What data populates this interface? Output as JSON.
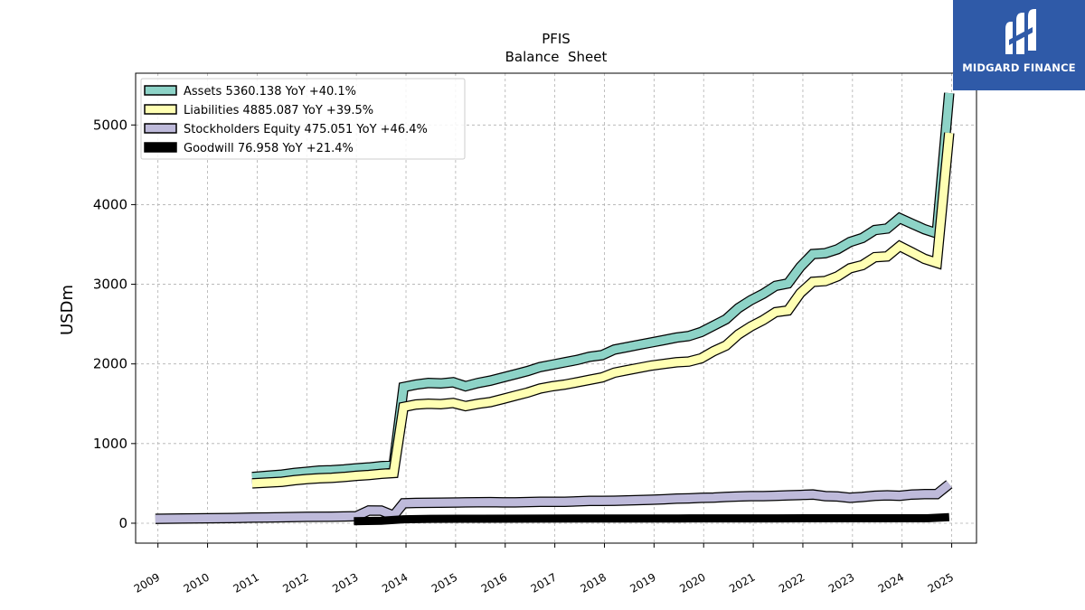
{
  "chart_data": {
    "type": "line",
    "title": "PFIS",
    "subtitle": "Balance  Sheet",
    "ylabel": "USDm",
    "xlabel": "",
    "xlim": [
      2008.55,
      2025.5
    ],
    "ylim": [
      -250,
      5650
    ],
    "x_ticks": [
      "2009",
      "2010",
      "2011",
      "2012",
      "2013",
      "2014",
      "2015",
      "2016",
      "2017",
      "2018",
      "2019",
      "2020",
      "2021",
      "2022",
      "2023",
      "2024",
      "2025"
    ],
    "y_ticks": [
      "0",
      "1000",
      "2000",
      "3000",
      "4000",
      "5000"
    ],
    "grid": true,
    "legend_position": "top-left",
    "series": [
      {
        "name": "Assets  5360.138 YoY +40.1%",
        "color": "#8dd3c7",
        "points": [
          [
            2010.9,
            580
          ],
          [
            2011.2,
            595
          ],
          [
            2011.5,
            610
          ],
          [
            2011.75,
            630
          ],
          [
            2012.0,
            645
          ],
          [
            2012.25,
            660
          ],
          [
            2012.5,
            665
          ],
          [
            2012.75,
            675
          ],
          [
            2013.0,
            690
          ],
          [
            2013.25,
            700
          ],
          [
            2013.5,
            715
          ],
          [
            2013.75,
            725
          ],
          [
            2013.95,
            1710
          ],
          [
            2014.2,
            1740
          ],
          [
            2014.45,
            1760
          ],
          [
            2014.7,
            1755
          ],
          [
            2014.95,
            1770
          ],
          [
            2015.2,
            1720
          ],
          [
            2015.45,
            1760
          ],
          [
            2015.7,
            1790
          ],
          [
            2015.95,
            1830
          ],
          [
            2016.2,
            1870
          ],
          [
            2016.45,
            1910
          ],
          [
            2016.7,
            1960
          ],
          [
            2016.95,
            1990
          ],
          [
            2017.2,
            2020
          ],
          [
            2017.45,
            2050
          ],
          [
            2017.7,
            2090
          ],
          [
            2017.95,
            2110
          ],
          [
            2018.2,
            2180
          ],
          [
            2018.45,
            2210
          ],
          [
            2018.7,
            2240
          ],
          [
            2018.95,
            2270
          ],
          [
            2019.2,
            2300
          ],
          [
            2019.45,
            2330
          ],
          [
            2019.7,
            2350
          ],
          [
            2019.95,
            2400
          ],
          [
            2020.2,
            2480
          ],
          [
            2020.45,
            2560
          ],
          [
            2020.7,
            2700
          ],
          [
            2020.95,
            2800
          ],
          [
            2021.2,
            2880
          ],
          [
            2021.45,
            2980
          ],
          [
            2021.7,
            3010
          ],
          [
            2021.95,
            3220
          ],
          [
            2022.2,
            3380
          ],
          [
            2022.45,
            3390
          ],
          [
            2022.7,
            3440
          ],
          [
            2022.95,
            3530
          ],
          [
            2023.2,
            3580
          ],
          [
            2023.45,
            3680
          ],
          [
            2023.7,
            3700
          ],
          [
            2023.95,
            3830
          ],
          [
            2024.2,
            3760
          ],
          [
            2024.45,
            3690
          ],
          [
            2024.7,
            3640
          ],
          [
            2024.95,
            5400
          ]
        ]
      },
      {
        "name": "Liabilities  4885.087 YoY +39.5%",
        "color": "#ffffb3",
        "points": [
          [
            2010.9,
            500
          ],
          [
            2011.2,
            510
          ],
          [
            2011.5,
            520
          ],
          [
            2011.75,
            540
          ],
          [
            2012.0,
            555
          ],
          [
            2012.25,
            565
          ],
          [
            2012.5,
            570
          ],
          [
            2012.75,
            580
          ],
          [
            2013.0,
            595
          ],
          [
            2013.25,
            605
          ],
          [
            2013.5,
            620
          ],
          [
            2013.75,
            630
          ],
          [
            2013.95,
            1460
          ],
          [
            2014.2,
            1490
          ],
          [
            2014.45,
            1500
          ],
          [
            2014.7,
            1495
          ],
          [
            2014.95,
            1510
          ],
          [
            2015.2,
            1470
          ],
          [
            2015.45,
            1500
          ],
          [
            2015.7,
            1520
          ],
          [
            2015.95,
            1560
          ],
          [
            2016.2,
            1600
          ],
          [
            2016.45,
            1640
          ],
          [
            2016.7,
            1690
          ],
          [
            2016.95,
            1720
          ],
          [
            2017.2,
            1740
          ],
          [
            2017.45,
            1770
          ],
          [
            2017.7,
            1800
          ],
          [
            2017.95,
            1830
          ],
          [
            2018.2,
            1890
          ],
          [
            2018.45,
            1920
          ],
          [
            2018.7,
            1950
          ],
          [
            2018.95,
            1980
          ],
          [
            2019.2,
            2000
          ],
          [
            2019.45,
            2020
          ],
          [
            2019.7,
            2030
          ],
          [
            2019.95,
            2070
          ],
          [
            2020.2,
            2160
          ],
          [
            2020.45,
            2230
          ],
          [
            2020.7,
            2370
          ],
          [
            2020.95,
            2470
          ],
          [
            2021.2,
            2550
          ],
          [
            2021.45,
            2650
          ],
          [
            2021.7,
            2670
          ],
          [
            2021.95,
            2890
          ],
          [
            2022.2,
            3030
          ],
          [
            2022.45,
            3040
          ],
          [
            2022.7,
            3100
          ],
          [
            2022.95,
            3200
          ],
          [
            2023.2,
            3240
          ],
          [
            2023.45,
            3340
          ],
          [
            2023.7,
            3350
          ],
          [
            2023.95,
            3480
          ],
          [
            2024.2,
            3400
          ],
          [
            2024.45,
            3320
          ],
          [
            2024.7,
            3270
          ],
          [
            2024.95,
            4900
          ]
        ]
      },
      {
        "name": "Stockholders Equity  475.051 YoY +46.4%",
        "color": "#bebada",
        "points": [
          [
            2008.95,
            55
          ],
          [
            2009.5,
            60
          ],
          [
            2010.0,
            62
          ],
          [
            2010.5,
            65
          ],
          [
            2010.9,
            70
          ],
          [
            2011.2,
            72
          ],
          [
            2011.5,
            75
          ],
          [
            2011.75,
            78
          ],
          [
            2012.0,
            80
          ],
          [
            2012.5,
            82
          ],
          [
            2012.75,
            85
          ],
          [
            2013.0,
            88
          ],
          [
            2013.25,
            160
          ],
          [
            2013.5,
            158
          ],
          [
            2013.75,
            95
          ],
          [
            2013.95,
            250
          ],
          [
            2014.2,
            255
          ],
          [
            2014.7,
            258
          ],
          [
            2015.2,
            262
          ],
          [
            2015.7,
            265
          ],
          [
            2015.95,
            262
          ],
          [
            2016.2,
            262
          ],
          [
            2016.7,
            268
          ],
          [
            2017.2,
            270
          ],
          [
            2017.7,
            280
          ],
          [
            2017.95,
            280
          ],
          [
            2018.2,
            282
          ],
          [
            2018.7,
            290
          ],
          [
            2018.95,
            295
          ],
          [
            2019.2,
            300
          ],
          [
            2019.45,
            308
          ],
          [
            2019.7,
            312
          ],
          [
            2019.95,
            318
          ],
          [
            2020.2,
            322
          ],
          [
            2020.45,
            330
          ],
          [
            2020.7,
            335
          ],
          [
            2020.95,
            340
          ],
          [
            2021.2,
            340
          ],
          [
            2021.45,
            345
          ],
          [
            2021.7,
            350
          ],
          [
            2021.95,
            355
          ],
          [
            2022.2,
            360
          ],
          [
            2022.45,
            340
          ],
          [
            2022.7,
            335
          ],
          [
            2022.95,
            320
          ],
          [
            2023.2,
            330
          ],
          [
            2023.45,
            345
          ],
          [
            2023.7,
            350
          ],
          [
            2023.95,
            345
          ],
          [
            2024.2,
            360
          ],
          [
            2024.45,
            365
          ],
          [
            2024.7,
            365
          ],
          [
            2024.95,
            490
          ]
        ]
      },
      {
        "name": "Goodwill  76.958 YoY +21.4%",
        "color": "#000000",
        "points": [
          [
            2012.95,
            25
          ],
          [
            2013.5,
            30
          ],
          [
            2013.95,
            50
          ],
          [
            2014.5,
            55
          ],
          [
            2015.5,
            56
          ],
          [
            2016.5,
            58
          ],
          [
            2017.5,
            60
          ],
          [
            2018.5,
            60
          ],
          [
            2019.5,
            60
          ],
          [
            2020.5,
            61
          ],
          [
            2021.5,
            61
          ],
          [
            2022.5,
            62
          ],
          [
            2023.5,
            62
          ],
          [
            2024.5,
            62
          ],
          [
            2024.95,
            77
          ]
        ]
      }
    ]
  }
}
